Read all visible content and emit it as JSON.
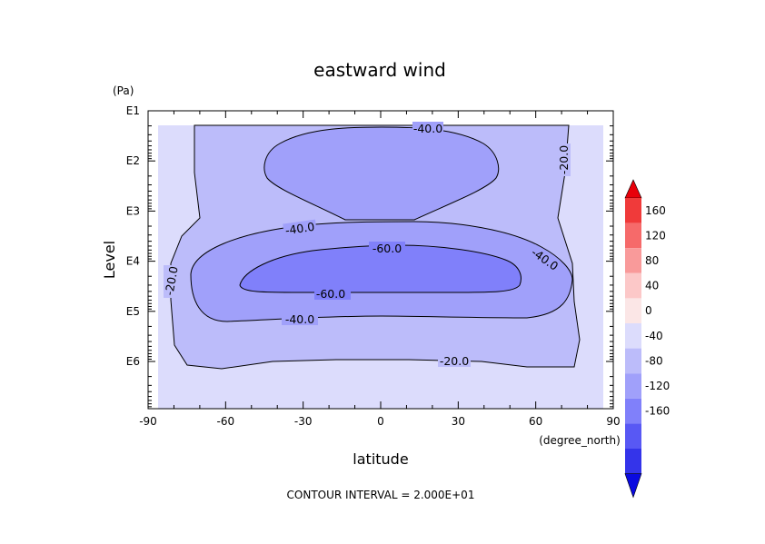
{
  "chart_data": {
    "type": "contour",
    "title": "eastward wind",
    "xlabel": "latitude",
    "x_unit": "(degree_north)",
    "ylabel": "Level",
    "y_unit": "(Pa)",
    "x_ticks": [
      -90,
      -60,
      -30,
      0,
      30,
      60,
      90
    ],
    "x_tick_labels": [
      "-90",
      "-60",
      "-30",
      "0",
      "30",
      "60",
      "90"
    ],
    "xlim": [
      -90,
      90
    ],
    "y_scale": "log",
    "y_ticks": [
      1,
      2,
      3,
      4,
      5,
      6
    ],
    "y_tick_labels": [
      "E1",
      "E2",
      "E3",
      "E4",
      "E5",
      "E6"
    ],
    "data_xlim": [
      -87.5,
      87.5
    ],
    "contour_interval_text": "CONTOUR INTERVAL = 2.000E+01",
    "contour_labels": [
      "-40.0",
      "-20.0",
      "-40.0",
      "-60.0",
      "-40.0",
      "-20.0",
      "-60.0",
      "-40.0",
      "-20.0"
    ],
    "colorbar": {
      "levels": [
        160,
        120,
        80,
        40,
        0,
        -40,
        -80,
        -120,
        -160
      ],
      "level_labels": [
        "160",
        "120",
        "80",
        "40",
        "0",
        "-40",
        "-80",
        "-120",
        "-160"
      ],
      "colors": [
        "#e8000a",
        "#f03a3a",
        "#f66a6a",
        "#f99a9a",
        "#fcc8c8",
        "#fbe6e6",
        "#dcdcfc",
        "#bcbcfa",
        "#a0a0fa",
        "#8080fa",
        "#5858f4",
        "#3434ea",
        "#0a0ae0"
      ]
    },
    "fill_colors": {
      "-20": "#dcdcfc",
      "-40": "#bcbcfa",
      "-60": "#a0a0fa",
      "below": "#8080fa"
    }
  }
}
